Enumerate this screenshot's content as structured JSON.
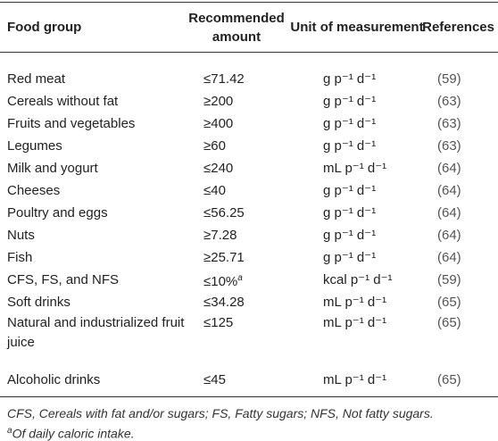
{
  "table": {
    "header": [
      "Food group",
      "Recommended amount",
      "Unit of measurement",
      "References"
    ],
    "rows": [
      {
        "food": "Red meat",
        "amount": "≤71.42",
        "unit": "g p⁻¹ d⁻¹",
        "ref": "(59)"
      },
      {
        "food": "Cereals without fat",
        "amount": "≥200",
        "unit": "g p⁻¹ d⁻¹",
        "ref": "(63)"
      },
      {
        "food": "Fruits and vegetables",
        "amount": "≥400",
        "unit": "g p⁻¹ d⁻¹",
        "ref": "(63)"
      },
      {
        "food": "Legumes",
        "amount": "≥60",
        "unit": "g p⁻¹ d⁻¹",
        "ref": "(63)"
      },
      {
        "food": "Milk and yogurt",
        "amount": "≤240",
        "unit": "mL p⁻¹ d⁻¹",
        "ref": "(64)"
      },
      {
        "food": "Cheeses",
        "amount": "≤40",
        "unit": "g p⁻¹ d⁻¹",
        "ref": "(64)"
      },
      {
        "food": "Poultry and eggs",
        "amount": "≤56.25",
        "unit": "g p⁻¹ d⁻¹",
        "ref": "(64)"
      },
      {
        "food": "Nuts",
        "amount": "≥7.28",
        "unit": "g p⁻¹ d⁻¹",
        "ref": "(64)"
      },
      {
        "food": "Fish",
        "amount": "≥25.71",
        "unit": "g p⁻¹ d⁻¹",
        "ref": "(64)"
      },
      {
        "food": "CFS, FS, and NFS",
        "amount": "≤10%",
        "note": "a",
        "unit": "kcal p⁻¹ d⁻¹",
        "ref": "(59)"
      },
      {
        "food": "Soft drinks",
        "amount": "≤34.28",
        "unit": "mL p⁻¹ d⁻¹",
        "ref": "(65)"
      },
      {
        "food": "Natural and industrialized fruit juice",
        "amount": "≤125",
        "unit": "mL p⁻¹ d⁻¹",
        "ref": "(65)"
      },
      {
        "food": "Alcoholic drinks",
        "amount": "≤45",
        "unit": "mL p⁻¹ d⁻¹",
        "ref": "(65)"
      }
    ],
    "footnotes": [
      {
        "text": "CFS, Cereals with fat and/or sugars; FS, Fatty sugars; NFS, Not fatty sugars."
      },
      {
        "marker": "a",
        "text": "Of daily caloric intake."
      }
    ]
  }
}
